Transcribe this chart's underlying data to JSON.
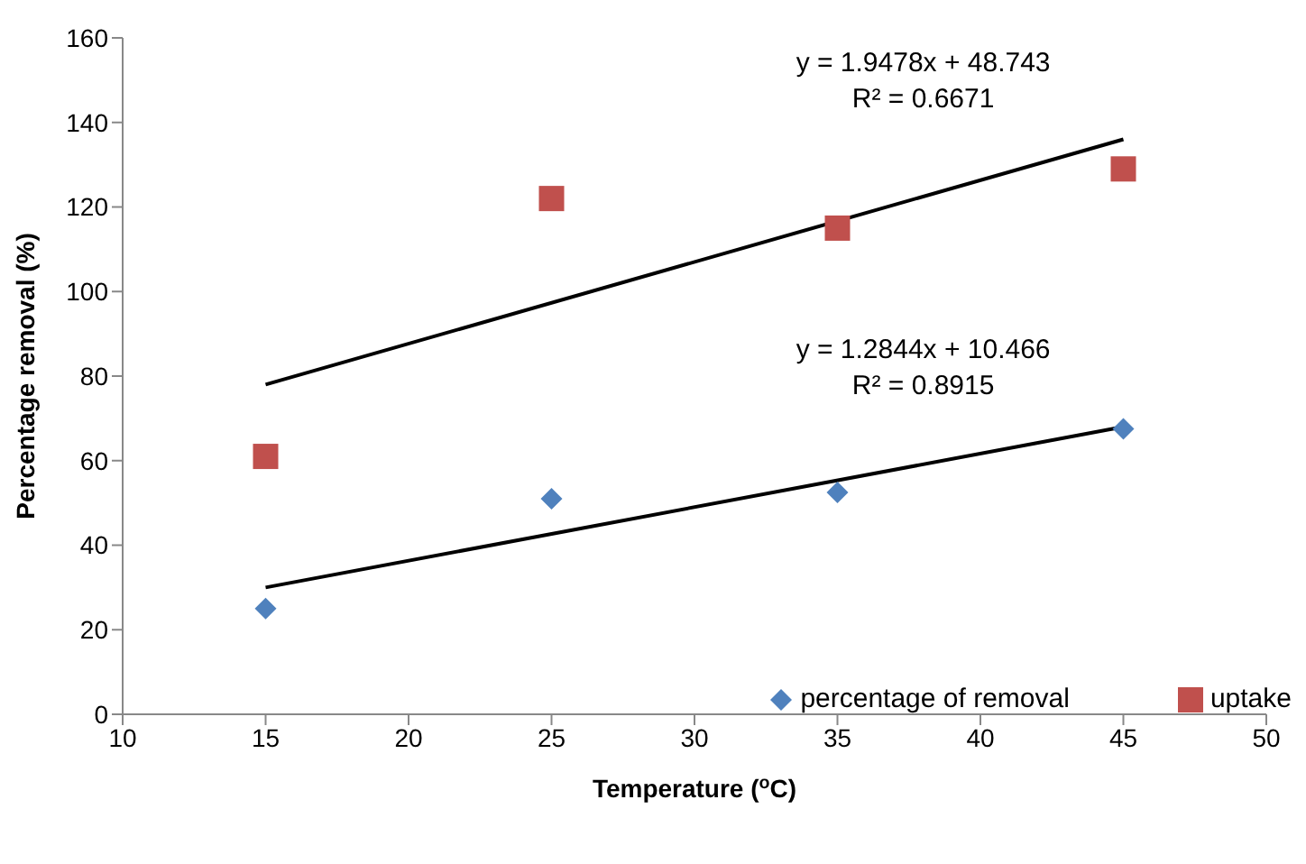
{
  "chart_data": {
    "type": "scatter",
    "xlabel": "Temperature ($^{o}$C)",
    "ylabel": "Percentage removal (%)",
    "xlim": [
      10,
      50
    ],
    "xticks": [
      10,
      15,
      20,
      25,
      30,
      35,
      40,
      45,
      50
    ],
    "ylim": [
      0,
      160
    ],
    "yticks": [
      0,
      20,
      40,
      60,
      80,
      100,
      120,
      140,
      160
    ],
    "grid": false,
    "legend": "bottom right",
    "series": [
      {
        "name": "percentage of removal",
        "color": "#4f81bd",
        "marker": "diamond",
        "x": [
          15,
          25,
          35,
          45
        ],
        "values": [
          25,
          51,
          52.5,
          67.5
        ]
      },
      {
        "name": "uptake",
        "color": "#c0504d",
        "marker": "square",
        "x": [
          15,
          25,
          35,
          45
        ],
        "values": [
          61,
          122,
          115,
          129
        ]
      },
      {
        "type": "line",
        "color": "#000000",
        "marker": "none",
        "x": [
          15,
          45
        ],
        "values": [
          78,
          136
        ]
      },
      {
        "type": "line",
        "color": "#000000",
        "marker": "none",
        "x": [
          15,
          45
        ],
        "values": [
          30,
          68
        ]
      }
    ],
    "annotations": [
      "y = 1.9478x + 48.743",
      "R² = 0.6671",
      "y = 1.2844x + 10.466",
      "R² = 0.8915"
    ]
  }
}
